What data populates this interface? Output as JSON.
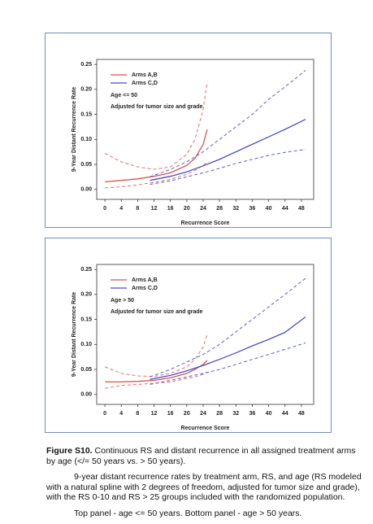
{
  "chart_data": [
    {
      "type": "line",
      "y_label": "9-Year Distant Recurrence Rate",
      "x_label": "Recurrence Score",
      "annotations": [
        "Age <= 50",
        "Adjusted for tumor size and grade"
      ],
      "xlim": [
        -2,
        51
      ],
      "ylim": [
        -0.02,
        0.26
      ],
      "xticks": [
        0,
        4,
        8,
        12,
        16,
        20,
        24,
        28,
        32,
        36,
        40,
        44,
        48
      ],
      "yticks": [
        {
          "value": 0,
          "label": "0.00"
        },
        0.05,
        {
          "value": 0.1,
          "label": "0.10"
        },
        0.15,
        {
          "value": 0.2,
          "label": "0.20"
        },
        0.25
      ],
      "series": [
        {
          "name": "Arms A,B",
          "color": "#d9534f",
          "style": "solid",
          "x": [
            0,
            4,
            8,
            12,
            16,
            20,
            22,
            24,
            25
          ],
          "values": [
            0.015,
            0.018,
            0.021,
            0.026,
            0.033,
            0.048,
            0.062,
            0.09,
            0.12
          ]
        },
        {
          "color": "#e0706c",
          "style": "dashed",
          "x": [
            0,
            4,
            8,
            12,
            16,
            20,
            22,
            24,
            25
          ],
          "values": [
            0.003,
            0.005,
            0.009,
            0.014,
            0.02,
            0.03,
            0.038,
            0.048,
            0.055
          ]
        },
        {
          "color": "#e0706c",
          "style": "dashed",
          "x": [
            0,
            4,
            8,
            12,
            16,
            20,
            22,
            24,
            25
          ],
          "values": [
            0.072,
            0.055,
            0.045,
            0.04,
            0.045,
            0.07,
            0.1,
            0.16,
            0.215
          ]
        },
        {
          "name": "Arms C,D",
          "color": "#4b4fc4",
          "style": "solid",
          "x": [
            11,
            16,
            20,
            24,
            28,
            32,
            36,
            40,
            44,
            49
          ],
          "values": [
            0.018,
            0.026,
            0.035,
            0.047,
            0.06,
            0.075,
            0.09,
            0.105,
            0.12,
            0.14
          ]
        },
        {
          "color": "#5a5ed0",
          "style": "dashed",
          "x": [
            11,
            16,
            20,
            24,
            28,
            32,
            36,
            40,
            44,
            49
          ],
          "values": [
            0.025,
            0.04,
            0.055,
            0.075,
            0.1,
            0.125,
            0.15,
            0.18,
            0.205,
            0.238
          ]
        },
        {
          "color": "#5a5ed0",
          "style": "dashed",
          "x": [
            11,
            16,
            20,
            24,
            28,
            32,
            36,
            40,
            44,
            49
          ],
          "values": [
            0.01,
            0.017,
            0.025,
            0.033,
            0.042,
            0.052,
            0.06,
            0.068,
            0.074,
            0.08
          ]
        }
      ]
    },
    {
      "type": "line",
      "y_label": "9-Year Distant Recurrence Rate",
      "x_label": "Recurrence Score",
      "annotations": [
        "Age > 50",
        "Adjusted for tumor size and grade"
      ],
      "xlim": [
        -2,
        51
      ],
      "ylim": [
        -0.02,
        0.26
      ],
      "xticks": [
        0,
        4,
        8,
        12,
        16,
        20,
        24,
        28,
        32,
        36,
        40,
        44,
        48
      ],
      "yticks": [
        {
          "value": 0,
          "label": "0.00"
        },
        0.05,
        {
          "value": 0.1,
          "label": "0.10"
        },
        0.15,
        {
          "value": 0.2,
          "label": "0.20"
        },
        0.25
      ],
      "series": [
        {
          "name": "Arms A,B",
          "color": "#d9534f",
          "style": "solid",
          "x": [
            0,
            4,
            8,
            12,
            16,
            20,
            22,
            24,
            25
          ],
          "values": [
            0.025,
            0.025,
            0.026,
            0.028,
            0.033,
            0.042,
            0.05,
            0.06,
            0.068
          ]
        },
        {
          "color": "#e0706c",
          "style": "dashed",
          "x": [
            0,
            4,
            8,
            12,
            16,
            20,
            22,
            24,
            25
          ],
          "values": [
            0.012,
            0.018,
            0.02,
            0.022,
            0.025,
            0.032,
            0.035,
            0.04,
            0.045
          ]
        },
        {
          "color": "#e0706c",
          "style": "dashed",
          "x": [
            0,
            4,
            8,
            12,
            16,
            20,
            22,
            24,
            25
          ],
          "values": [
            0.055,
            0.042,
            0.037,
            0.036,
            0.042,
            0.055,
            0.07,
            0.095,
            0.12
          ]
        },
        {
          "name": "Arms C,D",
          "color": "#4b4fc4",
          "style": "solid",
          "x": [
            11,
            16,
            20,
            24,
            28,
            32,
            36,
            40,
            44,
            49
          ],
          "values": [
            0.03,
            0.038,
            0.047,
            0.058,
            0.07,
            0.083,
            0.097,
            0.11,
            0.124,
            0.155
          ]
        },
        {
          "color": "#5a5ed0",
          "style": "dashed",
          "x": [
            11,
            16,
            20,
            24,
            28,
            32,
            36,
            40,
            44,
            49
          ],
          "values": [
            0.035,
            0.05,
            0.065,
            0.08,
            0.1,
            0.125,
            0.15,
            0.175,
            0.2,
            0.232
          ]
        },
        {
          "color": "#5a5ed0",
          "style": "dashed",
          "x": [
            11,
            16,
            20,
            24,
            28,
            32,
            36,
            40,
            44,
            49
          ],
          "values": [
            0.02,
            0.028,
            0.035,
            0.042,
            0.05,
            0.06,
            0.07,
            0.08,
            0.09,
            0.103
          ]
        }
      ]
    }
  ],
  "caption": {
    "label": "Figure S10.",
    "title": " Continuous RS and distant recurrence in all assigned treatment arms by age (</= 50 years vs. > 50 years).",
    "paragraphs": [
      "9-year distant recurrence rates by treatment arm, RS, and age (RS modeled with a natural spline with 2 degrees of freedom, adjusted for tumor size and grade), with the RS 0-10 and RS > 25 groups included with the randomized population.",
      "Top panel - age <= 50 years. Bottom panel - age > 50 years."
    ]
  }
}
